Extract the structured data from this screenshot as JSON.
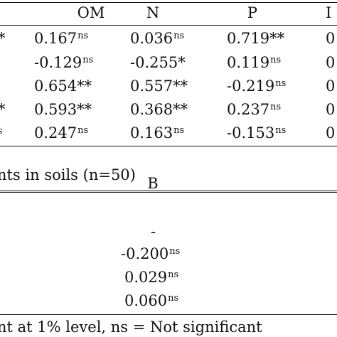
{
  "table1": {
    "headers": [
      "OM",
      "N",
      "P"
    ],
    "left_marks": [
      "*",
      "*",
      "s"
    ],
    "rows": [
      [
        {
          "v": "0.167",
          "s": "ns"
        },
        {
          "v": "0.036",
          "s": "ns"
        },
        {
          "v": "0.719",
          "s": "**"
        }
      ],
      [
        {
          "v": "-0.129",
          "s": "ns"
        },
        {
          "v": "-0.255",
          "s": "*"
        },
        {
          "v": "0.119",
          "s": "ns"
        }
      ],
      [
        {
          "v": "0.654",
          "s": "**"
        },
        {
          "v": "0.557",
          "s": "**"
        },
        {
          "v": "-0.219",
          "s": "ns"
        }
      ],
      [
        {
          "v": "0.593",
          "s": "**"
        },
        {
          "v": "0.368",
          "s": "**"
        },
        {
          "v": "0.237",
          "s": "ns"
        }
      ],
      [
        {
          "v": "0.247",
          "s": "ns"
        },
        {
          "v": "0.163",
          "s": "ns"
        },
        {
          "v": "-0.153",
          "s": "ns"
        }
      ]
    ],
    "right_edge_mark": "0",
    "caption": "nts in soils (n=50)"
  },
  "table2": {
    "header": "B",
    "values": [
      {
        "v": "-",
        "s": ""
      },
      {
        "v": "-0.200",
        "s": "ns"
      },
      {
        "v": "0.029",
        "s": "ns"
      },
      {
        "v": "0.060",
        "s": "ns"
      }
    ],
    "footnote": "nt at 1% level, ns = Not significant"
  }
}
